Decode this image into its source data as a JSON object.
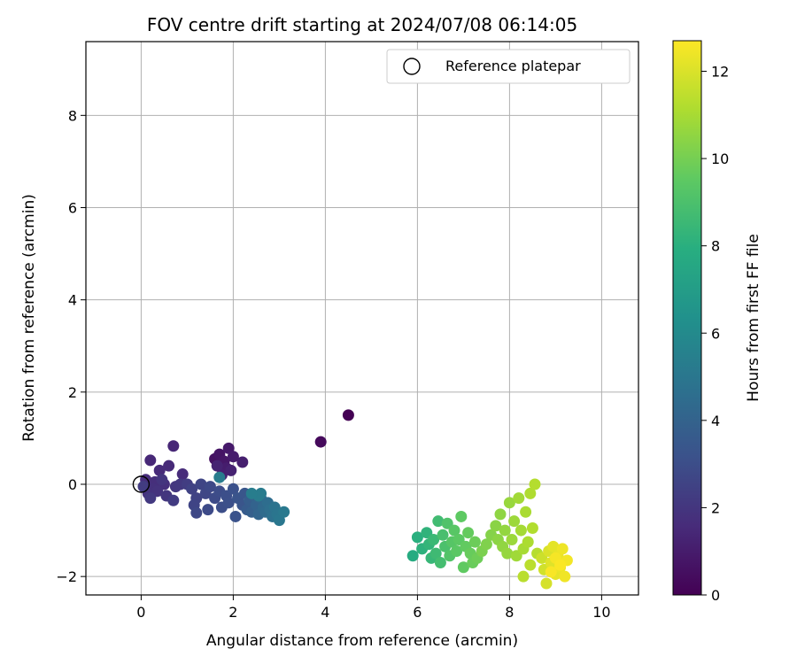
{
  "chart_data": {
    "type": "scatter",
    "title": "FOV centre drift starting at 2024/07/08 06:14:05",
    "xlabel": "Angular distance from reference (arcmin)",
    "ylabel": "Rotation from reference (arcmin)",
    "xlim": [
      -1.2,
      10.8
    ],
    "ylim": [
      -2.4,
      9.6
    ],
    "xticks": [
      0,
      2,
      4,
      6,
      8,
      10
    ],
    "xtick_labels": [
      "0",
      "2",
      "4",
      "6",
      "8",
      "10"
    ],
    "yticks": [
      -2,
      0,
      2,
      4,
      6,
      8
    ],
    "ytick_labels": [
      "−2",
      "0",
      "2",
      "4",
      "6",
      "8"
    ],
    "grid": true,
    "legend": {
      "placement": "top-right",
      "entries": [
        "Reference platepar"
      ]
    },
    "reference": {
      "x": 0,
      "y": 0,
      "label": "Reference platepar",
      "marker": "open-circle"
    },
    "colorbar": {
      "label": "Hours from first FF file",
      "colormap": "viridis",
      "range": [
        0,
        12.7
      ],
      "ticks": [
        0,
        2,
        4,
        6,
        8,
        10,
        12
      ],
      "tick_labels": [
        "0",
        "2",
        "4",
        "6",
        "8",
        "10",
        "12"
      ]
    },
    "points": [
      [
        4.5,
        1.5,
        0.0
      ],
      [
        3.9,
        0.92,
        0.3
      ],
      [
        1.6,
        0.55,
        0.6
      ],
      [
        1.7,
        0.65,
        0.7
      ],
      [
        1.8,
        0.5,
        0.8
      ],
      [
        1.9,
        0.78,
        0.9
      ],
      [
        2.0,
        0.6,
        1.0
      ],
      [
        1.85,
        0.35,
        1.05
      ],
      [
        2.2,
        0.48,
        1.1
      ],
      [
        1.75,
        0.2,
        1.15
      ],
      [
        1.95,
        0.3,
        1.2
      ],
      [
        1.65,
        0.4,
        1.25
      ],
      [
        0.7,
        0.83,
        1.4
      ],
      [
        0.2,
        0.52,
        1.45
      ],
      [
        0.6,
        0.4,
        1.5
      ],
      [
        0.4,
        0.3,
        1.55
      ],
      [
        0.9,
        0.22,
        1.6
      ],
      [
        0.1,
        0.1,
        1.65
      ],
      [
        0.3,
        0.05,
        1.7
      ],
      [
        0.5,
        0.0,
        1.75
      ],
      [
        0.25,
        -0.1,
        1.8
      ],
      [
        0.15,
        -0.2,
        1.85
      ],
      [
        0.35,
        -0.15,
        1.9
      ],
      [
        0.45,
        0.1,
        1.95
      ],
      [
        0.55,
        -0.25,
        2.0
      ],
      [
        0.75,
        -0.05,
        2.05
      ],
      [
        0.85,
        0.0,
        2.1
      ],
      [
        0.2,
        -0.3,
        2.15
      ],
      [
        0.7,
        -0.35,
        2.2
      ],
      [
        0.05,
        -0.05,
        2.25
      ],
      [
        1.0,
        0.0,
        2.3
      ],
      [
        1.1,
        -0.1,
        2.5
      ],
      [
        1.2,
        -0.3,
        2.55
      ],
      [
        1.15,
        -0.45,
        2.6
      ],
      [
        1.3,
        0.0,
        2.65
      ],
      [
        1.4,
        -0.2,
        2.7
      ],
      [
        1.2,
        -0.62,
        2.75
      ],
      [
        1.5,
        -0.05,
        2.8
      ],
      [
        1.45,
        -0.55,
        2.85
      ],
      [
        1.6,
        -0.3,
        2.9
      ],
      [
        1.7,
        -0.15,
        2.95
      ],
      [
        1.75,
        -0.5,
        3.0
      ],
      [
        1.85,
        -0.25,
        3.05
      ],
      [
        1.9,
        -0.4,
        3.1
      ],
      [
        2.0,
        -0.1,
        3.15
      ],
      [
        2.05,
        -0.7,
        3.2
      ],
      [
        2.1,
        -0.3,
        3.25
      ],
      [
        2.2,
        -0.45,
        3.3
      ],
      [
        2.25,
        -0.2,
        3.35
      ],
      [
        2.3,
        -0.55,
        3.6
      ],
      [
        2.35,
        -0.35,
        3.7
      ],
      [
        2.4,
        -0.6,
        3.8
      ],
      [
        2.45,
        -0.25,
        3.9
      ],
      [
        2.5,
        -0.45,
        4.0
      ],
      [
        2.55,
        -0.65,
        4.1
      ],
      [
        2.6,
        -0.3,
        4.2
      ],
      [
        2.65,
        -0.5,
        4.3
      ],
      [
        2.7,
        -0.6,
        4.4
      ],
      [
        2.75,
        -0.4,
        4.5
      ],
      [
        2.8,
        -0.55,
        4.6
      ],
      [
        2.85,
        -0.7,
        4.7
      ],
      [
        2.9,
        -0.5,
        4.8
      ],
      [
        2.95,
        -0.65,
        4.9
      ],
      [
        3.0,
        -0.78,
        5.0
      ],
      [
        3.1,
        -0.6,
        5.1
      ],
      [
        2.6,
        -0.2,
        5.2
      ],
      [
        2.55,
        -0.25,
        5.25
      ],
      [
        1.7,
        0.15,
        5.3
      ],
      [
        2.4,
        -0.2,
        5.35
      ],
      [
        5.9,
        -1.55,
        7.8
      ],
      [
        6.0,
        -1.15,
        8.0
      ],
      [
        6.1,
        -1.4,
        8.1
      ],
      [
        6.2,
        -1.05,
        8.2
      ],
      [
        6.25,
        -1.3,
        8.3
      ],
      [
        6.3,
        -1.6,
        8.4
      ],
      [
        6.35,
        -1.2,
        8.5
      ],
      [
        6.4,
        -1.5,
        8.6
      ],
      [
        6.45,
        -0.8,
        8.7
      ],
      [
        6.5,
        -1.7,
        8.8
      ],
      [
        6.55,
        -1.1,
        8.9
      ],
      [
        6.6,
        -1.35,
        9.0
      ],
      [
        6.65,
        -0.85,
        9.1
      ],
      [
        6.7,
        -1.55,
        9.2
      ],
      [
        6.75,
        -1.25,
        9.3
      ],
      [
        6.8,
        -1.0,
        9.35
      ],
      [
        6.85,
        -1.45,
        9.4
      ],
      [
        6.9,
        -1.2,
        9.45
      ],
      [
        6.95,
        -0.7,
        9.5
      ],
      [
        7.0,
        -1.8,
        9.55
      ],
      [
        7.05,
        -1.35,
        9.6
      ],
      [
        7.1,
        -1.05,
        9.65
      ],
      [
        7.15,
        -1.5,
        9.7
      ],
      [
        7.2,
        -1.7,
        9.75
      ],
      [
        7.25,
        -1.25,
        9.8
      ],
      [
        7.3,
        -1.6,
        9.85
      ],
      [
        7.4,
        -1.45,
        10.1
      ],
      [
        7.5,
        -1.3,
        10.2
      ],
      [
        7.6,
        -1.1,
        10.3
      ],
      [
        7.7,
        -0.9,
        10.4
      ],
      [
        7.75,
        -1.2,
        10.45
      ],
      [
        7.8,
        -0.65,
        10.5
      ],
      [
        7.85,
        -1.35,
        10.55
      ],
      [
        7.9,
        -1.0,
        10.6
      ],
      [
        7.95,
        -1.5,
        10.65
      ],
      [
        8.0,
        -0.4,
        10.7
      ],
      [
        8.05,
        -1.2,
        10.75
      ],
      [
        8.1,
        -0.8,
        10.8
      ],
      [
        8.15,
        -1.55,
        10.85
      ],
      [
        8.2,
        -0.3,
        10.9
      ],
      [
        8.25,
        -1.0,
        10.95
      ],
      [
        8.3,
        -1.4,
        11.0
      ],
      [
        8.35,
        -0.6,
        11.05
      ],
      [
        8.4,
        -1.25,
        11.1
      ],
      [
        8.45,
        -0.2,
        11.15
      ],
      [
        8.5,
        -0.95,
        11.2
      ],
      [
        8.55,
        0.0,
        11.25
      ],
      [
        8.6,
        -1.5,
        11.3
      ],
      [
        8.3,
        -2.0,
        11.35
      ],
      [
        8.45,
        -1.75,
        11.4
      ],
      [
        8.7,
        -1.6,
        11.7
      ],
      [
        8.75,
        -1.85,
        11.8
      ],
      [
        8.8,
        -2.15,
        11.9
      ],
      [
        8.85,
        -1.45,
        12.0
      ],
      [
        8.9,
        -1.7,
        12.1
      ],
      [
        8.95,
        -1.35,
        12.2
      ],
      [
        9.0,
        -1.95,
        12.25
      ],
      [
        9.05,
        -1.55,
        12.3
      ],
      [
        9.1,
        -1.8,
        12.35
      ],
      [
        9.15,
        -1.4,
        12.4
      ],
      [
        9.2,
        -2.0,
        12.45
      ],
      [
        9.25,
        -1.65,
        12.5
      ],
      [
        9.0,
        -1.6,
        12.55
      ],
      [
        8.9,
        -1.9,
        12.6
      ],
      [
        9.1,
        -1.75,
        12.65
      ]
    ]
  }
}
